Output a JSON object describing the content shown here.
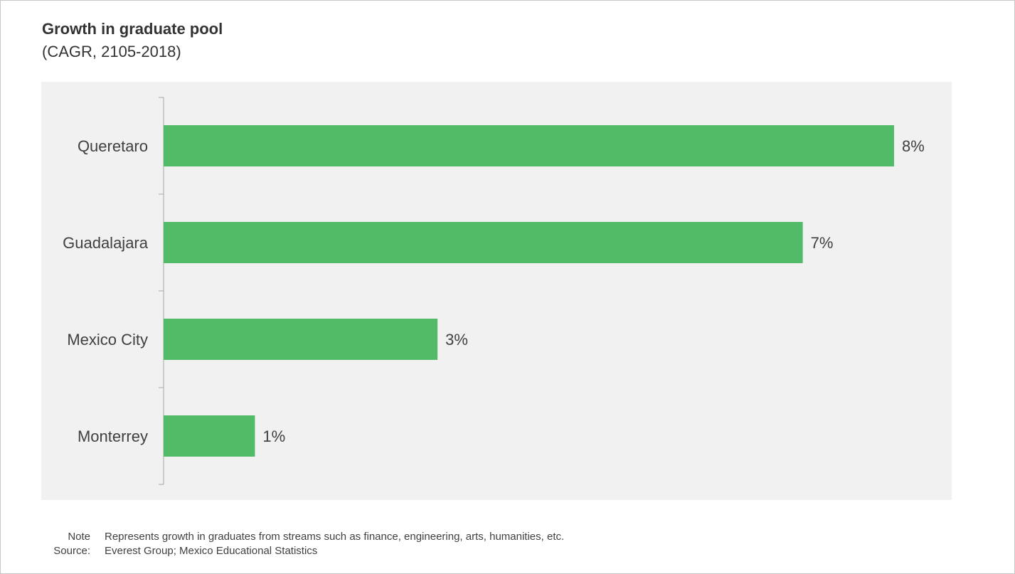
{
  "chart_data": {
    "type": "bar",
    "orientation": "horizontal",
    "title": "Growth in graduate pool",
    "subtitle": "(CAGR, 2105-2018)",
    "categories": [
      "Queretaro",
      "Guadalajara",
      "Mexico City",
      "Monterrey"
    ],
    "values": [
      8,
      7,
      3,
      1
    ],
    "value_labels": [
      "8%",
      "7%",
      "3%",
      "1%"
    ],
    "unit": "%",
    "xlim": [
      0,
      8
    ],
    "grid": false,
    "bar_color": "#52bb67",
    "plot_bg": "#f1f1f1"
  },
  "footer": {
    "note_label": "Note",
    "note_text": "Represents growth in graduates from streams such as finance, engineering, arts, humanities, etc.",
    "source_label": "Source:",
    "source_text": "Everest Group; Mexico Educational Statistics"
  }
}
